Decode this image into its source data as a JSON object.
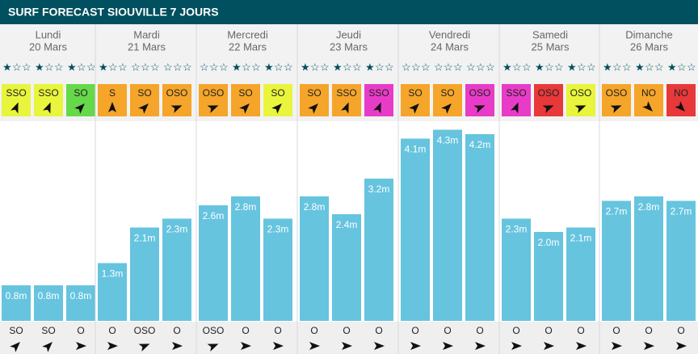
{
  "header": {
    "title": "SURF FORECAST SIOUVILLE 7 JOURS"
  },
  "days": [
    {
      "name": "Lundi",
      "date": "20 Mars",
      "slots": [
        {
          "stars": 1,
          "wind": "SSO",
          "wind_color": "#e8f53c",
          "height": 0.8,
          "height_label": "0.8m",
          "swell": "SO"
        },
        {
          "stars": 1,
          "wind": "SSO",
          "wind_color": "#e8f53c",
          "height": 0.8,
          "height_label": "0.8m",
          "swell": "SO"
        },
        {
          "stars": 1,
          "wind": "SO",
          "wind_color": "#66d84a",
          "height": 0.8,
          "height_label": "0.8m",
          "swell": "O"
        }
      ]
    },
    {
      "name": "Mardi",
      "date": "21 Mars",
      "slots": [
        {
          "stars": 1,
          "wind": "S",
          "wind_color": "#f5a52a",
          "height": 1.3,
          "height_label": "1.3m",
          "swell": "O"
        },
        {
          "stars": 0,
          "wind": "SO",
          "wind_color": "#f5a52a",
          "height": 2.1,
          "height_label": "2.1m",
          "swell": "OSO"
        },
        {
          "stars": 0,
          "wind": "OSO",
          "wind_color": "#f5a52a",
          "height": 2.3,
          "height_label": "2.3m",
          "swell": "O"
        }
      ]
    },
    {
      "name": "Mercredi",
      "date": "22 Mars",
      "slots": [
        {
          "stars": 0,
          "wind": "OSO",
          "wind_color": "#f5a52a",
          "height": 2.6,
          "height_label": "2.6m",
          "swell": "OSO"
        },
        {
          "stars": 1,
          "wind": "SO",
          "wind_color": "#f5a52a",
          "height": 2.8,
          "height_label": "2.8m",
          "swell": "O"
        },
        {
          "stars": 1,
          "wind": "SO",
          "wind_color": "#e8f53c",
          "height": 2.3,
          "height_label": "2.3m",
          "swell": "O"
        }
      ]
    },
    {
      "name": "Jeudi",
      "date": "23 Mars",
      "slots": [
        {
          "stars": 1,
          "wind": "SO",
          "wind_color": "#f5a52a",
          "height": 2.8,
          "height_label": "2.8m",
          "swell": "O"
        },
        {
          "stars": 1,
          "wind": "SSO",
          "wind_color": "#f5a52a",
          "height": 2.4,
          "height_label": "2.4m",
          "swell": "O"
        },
        {
          "stars": 1,
          "wind": "SSO",
          "wind_color": "#e83cc8",
          "height": 3.2,
          "height_label": "3.2m",
          "swell": "O"
        }
      ]
    },
    {
      "name": "Vendredi",
      "date": "24 Mars",
      "slots": [
        {
          "stars": 0,
          "wind": "SO",
          "wind_color": "#f5a52a",
          "height": 4.1,
          "height_label": "4.1m",
          "swell": "O"
        },
        {
          "stars": 0,
          "wind": "SO",
          "wind_color": "#f5a52a",
          "height": 4.3,
          "height_label": "4.3m",
          "swell": "O"
        },
        {
          "stars": 0,
          "wind": "OSO",
          "wind_color": "#e83cc8",
          "height": 4.2,
          "height_label": "4.2m",
          "swell": "O"
        }
      ]
    },
    {
      "name": "Samedi",
      "date": "25 Mars",
      "slots": [
        {
          "stars": 1,
          "wind": "SSO",
          "wind_color": "#e83cc8",
          "height": 2.3,
          "height_label": "2.3m",
          "swell": "O"
        },
        {
          "stars": 1,
          "wind": "OSO",
          "wind_color": "#e8383a",
          "height": 2.0,
          "height_label": "2.0m",
          "swell": "O"
        },
        {
          "stars": 1,
          "wind": "OSO",
          "wind_color": "#e8f53c",
          "height": 2.1,
          "height_label": "2.1m",
          "swell": "O"
        }
      ]
    },
    {
      "name": "Dimanche",
      "date": "26 Mars",
      "slots": [
        {
          "stars": 1,
          "wind": "OSO",
          "wind_color": "#f5a52a",
          "height": 2.7,
          "height_label": "2.7m",
          "swell": "O"
        },
        {
          "stars": 1,
          "wind": "NO",
          "wind_color": "#f5a52a",
          "height": 2.8,
          "height_label": "2.8m",
          "swell": "O"
        },
        {
          "stars": 1,
          "wind": "NO",
          "wind_color": "#e8383a",
          "height": 2.7,
          "height_label": "2.7m",
          "swell": "O"
        }
      ]
    }
  ]
}
